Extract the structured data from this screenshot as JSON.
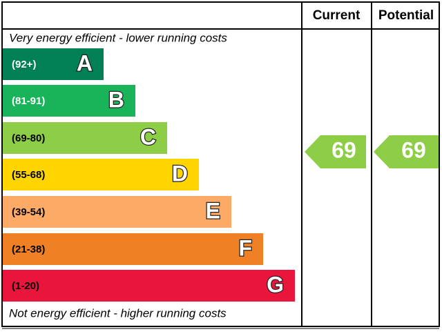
{
  "header": {
    "current": "Current",
    "potential": "Potential"
  },
  "top_note": "Very energy efficient - lower running costs",
  "bottom_note": "Not energy efficient - higher running costs",
  "bands": [
    {
      "range": "(92+)",
      "letter": "A",
      "color": "#008054"
    },
    {
      "range": "(81-91)",
      "letter": "B",
      "color": "#19b459"
    },
    {
      "range": "(69-80)",
      "letter": "C",
      "color": "#8dce46"
    },
    {
      "range": "(55-68)",
      "letter": "D",
      "color": "#ffd500"
    },
    {
      "range": "(39-54)",
      "letter": "E",
      "color": "#fcaa65"
    },
    {
      "range": "(21-38)",
      "letter": "F",
      "color": "#ef8023"
    },
    {
      "range": "(1-20)",
      "letter": "G",
      "color": "#e9153b"
    }
  ],
  "current": {
    "value": "69",
    "color": "#8dce46"
  },
  "potential": {
    "value": "69",
    "color": "#8dce46"
  }
}
